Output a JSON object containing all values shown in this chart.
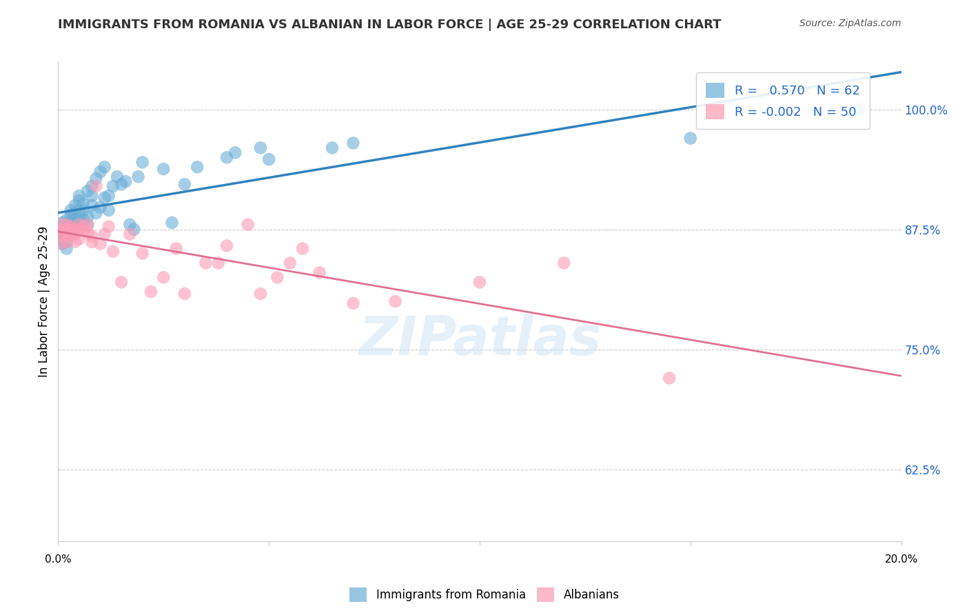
{
  "title": "IMMIGRANTS FROM ROMANIA VS ALBANIAN IN LABOR FORCE | AGE 25-29 CORRELATION CHART",
  "source": "Source: ZipAtlas.com",
  "ylabel": "In Labor Force | Age 25-29",
  "yticks": [
    0.625,
    0.75,
    0.875,
    1.0
  ],
  "ytick_labels": [
    "62.5%",
    "75.0%",
    "87.5%",
    "100.0%"
  ],
  "xlim": [
    0.0,
    0.2
  ],
  "ylim": [
    0.55,
    1.05
  ],
  "legend_romania_r": "0.570",
  "legend_romania_n": "62",
  "legend_albanian_r": "-0.002",
  "legend_albanian_n": "50",
  "romania_color": "#6baed6",
  "albanian_color": "#fc9cb4",
  "romania_line_color": "#3182bd",
  "albanian_line_color": "#e07090",
  "watermark": "ZIPatlas",
  "romania_x": [
    0.001,
    0.001,
    0.001,
    0.001,
    0.001,
    0.001,
    0.001,
    0.002,
    0.002,
    0.002,
    0.002,
    0.002,
    0.002,
    0.003,
    0.003,
    0.003,
    0.003,
    0.004,
    0.004,
    0.004,
    0.004,
    0.005,
    0.005,
    0.005,
    0.005,
    0.006,
    0.006,
    0.006,
    0.007,
    0.007,
    0.007,
    0.008,
    0.008,
    0.008,
    0.009,
    0.009,
    0.01,
    0.01,
    0.011,
    0.011,
    0.012,
    0.012,
    0.013,
    0.014,
    0.015,
    0.016,
    0.017,
    0.018,
    0.019,
    0.02,
    0.025,
    0.027,
    0.03,
    0.033,
    0.04,
    0.042,
    0.048,
    0.05,
    0.065,
    0.07,
    0.15,
    0.19
  ],
  "romania_y": [
    0.875,
    0.878,
    0.882,
    0.87,
    0.864,
    0.86,
    0.872,
    0.88,
    0.885,
    0.868,
    0.862,
    0.855,
    0.873,
    0.89,
    0.883,
    0.878,
    0.895,
    0.9,
    0.892,
    0.886,
    0.878,
    0.905,
    0.895,
    0.886,
    0.91,
    0.895,
    0.902,
    0.885,
    0.915,
    0.888,
    0.88,
    0.92,
    0.91,
    0.9,
    0.928,
    0.892,
    0.935,
    0.898,
    0.94,
    0.908,
    0.91,
    0.895,
    0.92,
    0.93,
    0.922,
    0.925,
    0.88,
    0.875,
    0.93,
    0.945,
    0.938,
    0.882,
    0.922,
    0.94,
    0.95,
    0.955,
    0.96,
    0.948,
    0.96,
    0.965,
    0.97,
    1.0
  ],
  "albanian_x": [
    0.001,
    0.001,
    0.001,
    0.001,
    0.001,
    0.002,
    0.002,
    0.002,
    0.002,
    0.003,
    0.003,
    0.003,
    0.004,
    0.004,
    0.004,
    0.005,
    0.005,
    0.005,
    0.006,
    0.006,
    0.007,
    0.007,
    0.008,
    0.008,
    0.009,
    0.01,
    0.011,
    0.012,
    0.013,
    0.015,
    0.017,
    0.02,
    0.022,
    0.025,
    0.028,
    0.03,
    0.035,
    0.038,
    0.04,
    0.045,
    0.048,
    0.052,
    0.055,
    0.058,
    0.062,
    0.07,
    0.08,
    0.1,
    0.12,
    0.145
  ],
  "albanian_y": [
    0.875,
    0.872,
    0.868,
    0.88,
    0.86,
    0.875,
    0.87,
    0.862,
    0.88,
    0.875,
    0.868,
    0.878,
    0.875,
    0.87,
    0.862,
    0.88,
    0.875,
    0.865,
    0.878,
    0.875,
    0.872,
    0.88,
    0.862,
    0.868,
    0.92,
    0.86,
    0.87,
    0.878,
    0.852,
    0.82,
    0.87,
    0.85,
    0.81,
    0.825,
    0.855,
    0.808,
    0.84,
    0.84,
    0.858,
    0.88,
    0.808,
    0.825,
    0.84,
    0.855,
    0.83,
    0.798,
    0.8,
    0.82,
    0.84,
    0.72
  ]
}
